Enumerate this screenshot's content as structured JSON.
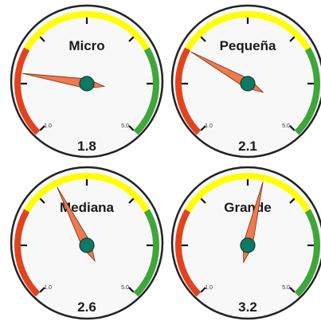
{
  "range": {
    "min": 1.0,
    "max": 5.0,
    "min_label": "1.0",
    "max_label": "5.0"
  },
  "colors": {
    "low": "#e2431e",
    "mid": "#ffff00",
    "high": "#3ea63a",
    "needle": "#f07a50",
    "hub": "#0f7a63",
    "face": "#f8f8f8",
    "bezel": "#222222"
  },
  "gauges": [
    {
      "title": "Micro",
      "value": 1.8,
      "value_label": "1.8"
    },
    {
      "title": "Pequeña",
      "value": 2.1,
      "value_label": "2.1"
    },
    {
      "title": "Mediana",
      "value": 2.6,
      "value_label": "2.6"
    },
    {
      "title": "Grande",
      "value": 3.2,
      "value_label": "3.2"
    }
  ]
}
